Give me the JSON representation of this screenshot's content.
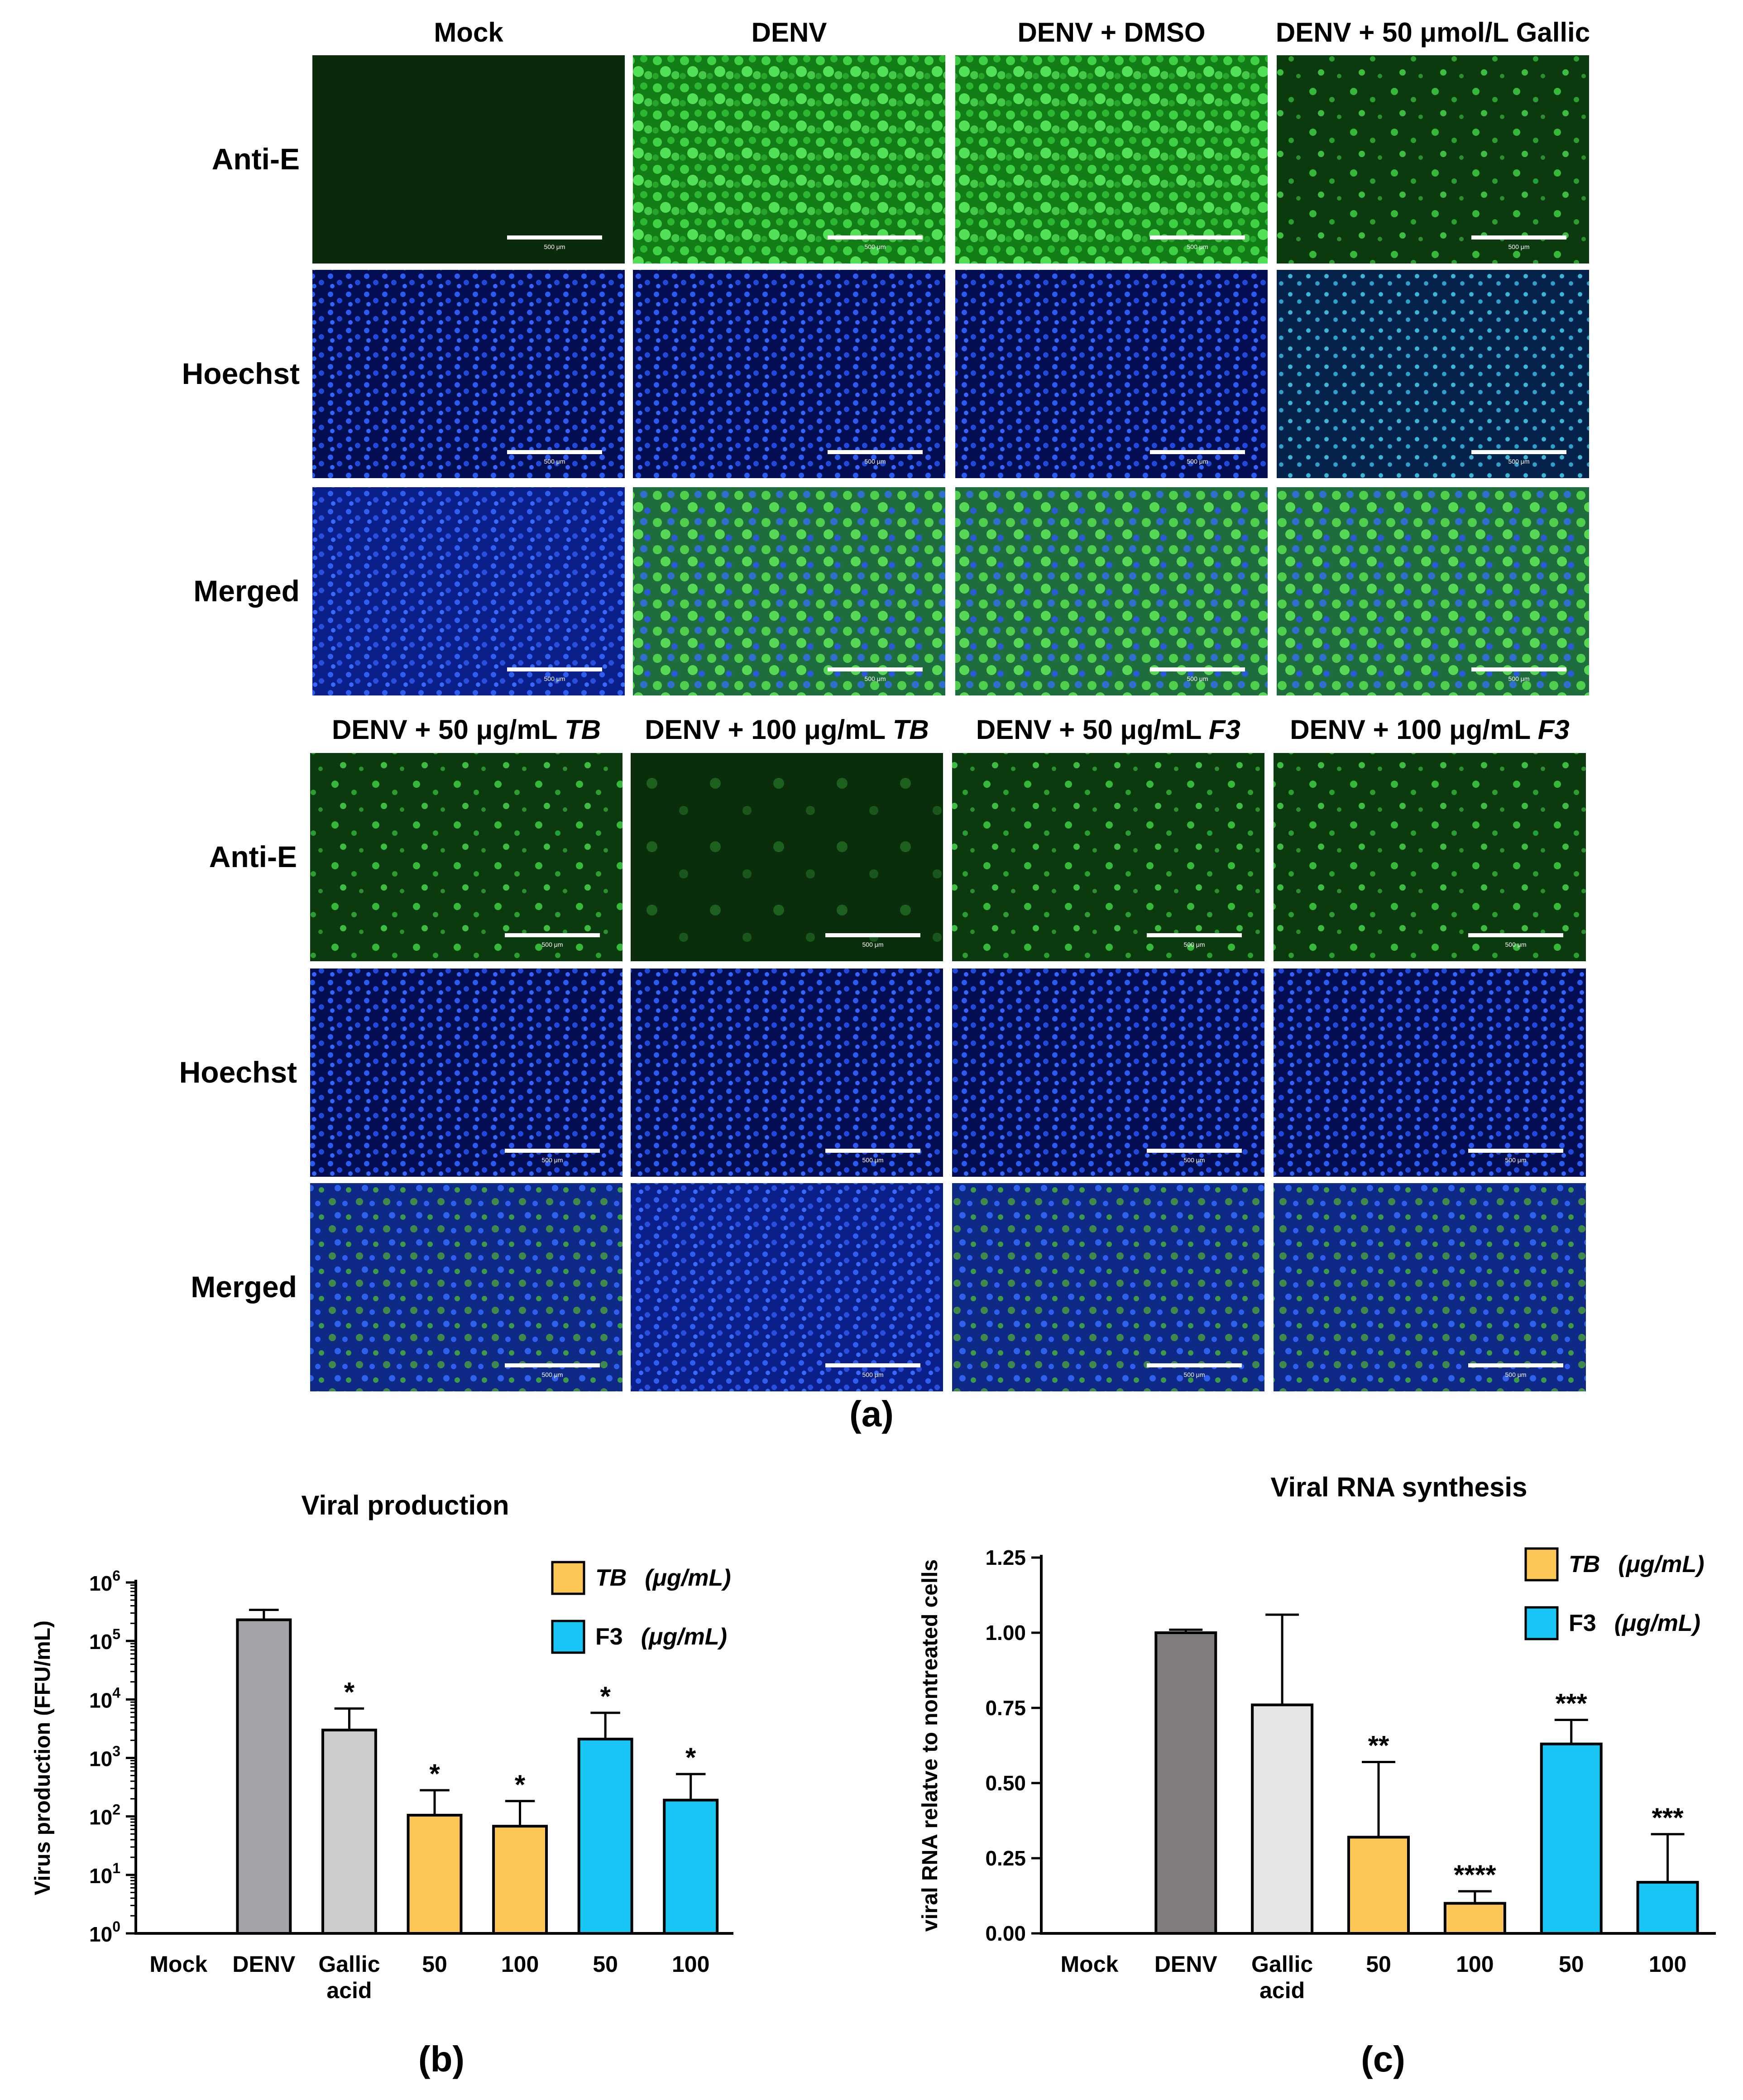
{
  "panel_a": {
    "panel_label": "(a)",
    "scale_bar_text": "500 μm",
    "top": {
      "columns": [
        {
          "id": "mock",
          "label": "Mock"
        },
        {
          "id": "denv",
          "label": "DENV"
        },
        {
          "id": "dmso",
          "label": "DENV + DMSO"
        },
        {
          "id": "gallic",
          "label": "DENV + 50 μmol/L Gallic"
        }
      ]
    },
    "bottom": {
      "columns": [
        {
          "id": "tb50",
          "label_prefix": "DENV + 50 μg/mL ",
          "label_italic": "TB"
        },
        {
          "id": "tb100",
          "label_prefix": "DENV + 100 μg/mL ",
          "label_italic": "TB"
        },
        {
          "id": "f350",
          "label_prefix": "DENV + 50 μg/mL ",
          "label_italic": "F3"
        },
        {
          "id": "f3100",
          "label_prefix": "DENV + 100 μg/mL ",
          "label_italic": "F3"
        }
      ]
    },
    "rows": [
      "Anti-E",
      "Hoechst",
      "Merged"
    ],
    "colors": {
      "anti_e": "#1f9e20",
      "hoechst": "#1a3fd6",
      "merged_blue": "#1a35c8",
      "dark": "#02140a"
    }
  },
  "chart_data": [
    {
      "type": "bar",
      "panel_label": "(b)",
      "title": "Viral production",
      "ylabel": "Virus production (FFU/mL)",
      "yscale": "log",
      "ylim": [
        1,
        1000000
      ],
      "yticks": [
        {
          "value": 1,
          "base": "10",
          "exp": "0"
        },
        {
          "value": 10,
          "base": "10",
          "exp": "1"
        },
        {
          "value": 100,
          "base": "10",
          "exp": "2"
        },
        {
          "value": 1000,
          "base": "10",
          "exp": "3"
        },
        {
          "value": 10000,
          "base": "10",
          "exp": "4"
        },
        {
          "value": 100000,
          "base": "10",
          "exp": "5"
        },
        {
          "value": 1000000,
          "base": "10",
          "exp": "6"
        }
      ],
      "categories": [
        {
          "lines": [
            "Mock"
          ]
        },
        {
          "lines": [
            "DENV"
          ]
        },
        {
          "lines": [
            "Gallic",
            "acid"
          ]
        },
        {
          "lines": [
            "50"
          ]
        },
        {
          "lines": [
            "100"
          ]
        },
        {
          "lines": [
            "50"
          ]
        },
        {
          "lines": [
            "100"
          ]
        }
      ],
      "values": [
        null,
        230000,
        3000,
        105,
        68,
        2100,
        190
      ],
      "errors": [
        null,
        110000,
        4000,
        175,
        115,
        3800,
        340
      ],
      "bar_colors": [
        "#ffffff",
        "#a4a4aa",
        "#cccccc",
        "#fcc754",
        "#fcc754",
        "#18c5f5",
        "#18c5f5"
      ],
      "significance": [
        "",
        "",
        "*",
        "*",
        "*",
        "*",
        "*"
      ],
      "legend": [
        {
          "italic": "TB",
          "unit": "(μg/mL)",
          "color": "#fcc754"
        },
        {
          "italic": "",
          "name": "F3",
          "unit": "(μg/mL)",
          "color": "#18c5f5"
        }
      ]
    },
    {
      "type": "bar",
      "panel_label": "(c)",
      "title": "Viral RNA synthesis",
      "ylabel": "viral RNA relatve to nontreated cells",
      "yscale": "linear",
      "ylim": [
        0,
        1.25
      ],
      "yticks": [
        "0.00",
        "0.25",
        "0.50",
        "0.75",
        "1.00",
        "1.25"
      ],
      "categories": [
        {
          "lines": [
            "Mock"
          ]
        },
        {
          "lines": [
            "DENV"
          ]
        },
        {
          "lines": [
            "Gallic",
            "acid"
          ]
        },
        {
          "lines": [
            "50"
          ]
        },
        {
          "lines": [
            "100"
          ]
        },
        {
          "lines": [
            "50"
          ]
        },
        {
          "lines": [
            "100"
          ]
        }
      ],
      "values": [
        0,
        1.0,
        0.76,
        0.32,
        0.1,
        0.63,
        0.17
      ],
      "errors": [
        0,
        0.01,
        0.3,
        0.25,
        0.04,
        0.08,
        0.16
      ],
      "bar_colors": [
        "#ffffff",
        "#807c7c",
        "#e6e6e6",
        "#fcc754",
        "#fcc754",
        "#18c5f5",
        "#18c5f5"
      ],
      "significance": [
        "",
        "",
        "",
        "**",
        "****",
        "***",
        "***"
      ],
      "legend": [
        {
          "italic": "TB",
          "unit": "(μg/mL)",
          "color": "#fcc754"
        },
        {
          "italic": "",
          "name": "F3",
          "unit": "(μg/mL)",
          "color": "#18c5f5"
        }
      ]
    }
  ]
}
